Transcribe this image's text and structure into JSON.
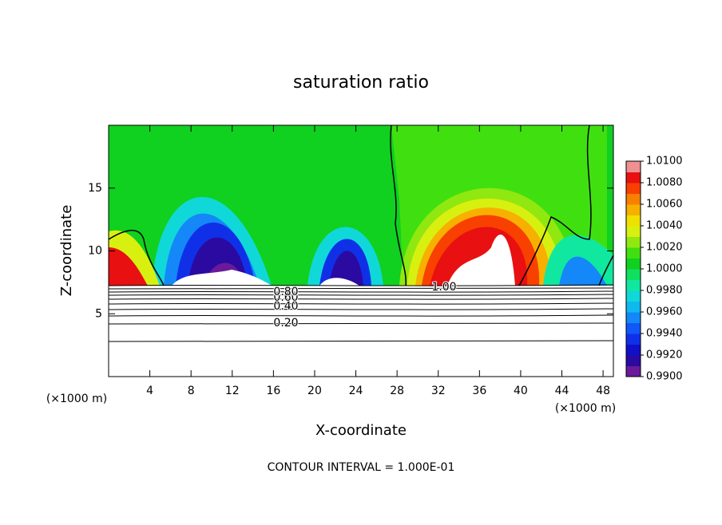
{
  "chart_data": {
    "type": "contour",
    "title": "saturation ratio",
    "x_label": "X-coordinate",
    "y_label": "Z-coordinate",
    "x_unit": "(×1000 m)",
    "xlim": [
      0,
      49
    ],
    "xticks": [
      4,
      8,
      12,
      16,
      20,
      24,
      28,
      32,
      36,
      40,
      44,
      48
    ],
    "ylim": [
      0,
      20
    ],
    "yticks": [
      5,
      10,
      15
    ],
    "colorbar": {
      "lim": [
        0.99,
        1.01
      ],
      "ticks": [
        {
          "value": 0.99,
          "label": "0.9900"
        },
        {
          "value": 0.992,
          "label": "0.9920"
        },
        {
          "value": 0.994,
          "label": "0.9940"
        },
        {
          "value": 0.996,
          "label": "0.9960"
        },
        {
          "value": 0.998,
          "label": "0.9980"
        },
        {
          "value": 1.0,
          "label": "1.0000"
        },
        {
          "value": 1.002,
          "label": "1.0020"
        },
        {
          "value": 1.004,
          "label": "1.0040"
        },
        {
          "value": 1.006,
          "label": "1.0060"
        },
        {
          "value": 1.008,
          "label": "1.0080"
        },
        {
          "value": 1.01,
          "label": "1.0100"
        }
      ],
      "colors": [
        "#6a1a9a",
        "#2a0aa0",
        "#1010c8",
        "#1030e8",
        "#1058f8",
        "#1488f8",
        "#10b8f0",
        "#10d8d8",
        "#10e8a0",
        "#10e060",
        "#10d020",
        "#40e010",
        "#90e810",
        "#d8f010",
        "#f0e000",
        "#f8b000",
        "#f88000",
        "#f84000",
        "#e81010",
        "#f09090"
      ]
    },
    "contour_labels": [
      {
        "value": 0.2,
        "label": "0.20"
      },
      {
        "value": 0.4,
        "label": "0.40"
      },
      {
        "value": 0.6,
        "label": "0.60"
      },
      {
        "value": 0.8,
        "label": "0.80"
      },
      {
        "value": 1.0,
        "label": "1.00"
      }
    ],
    "footer": "CONTOUR INTERVAL = 1.000E-01"
  }
}
